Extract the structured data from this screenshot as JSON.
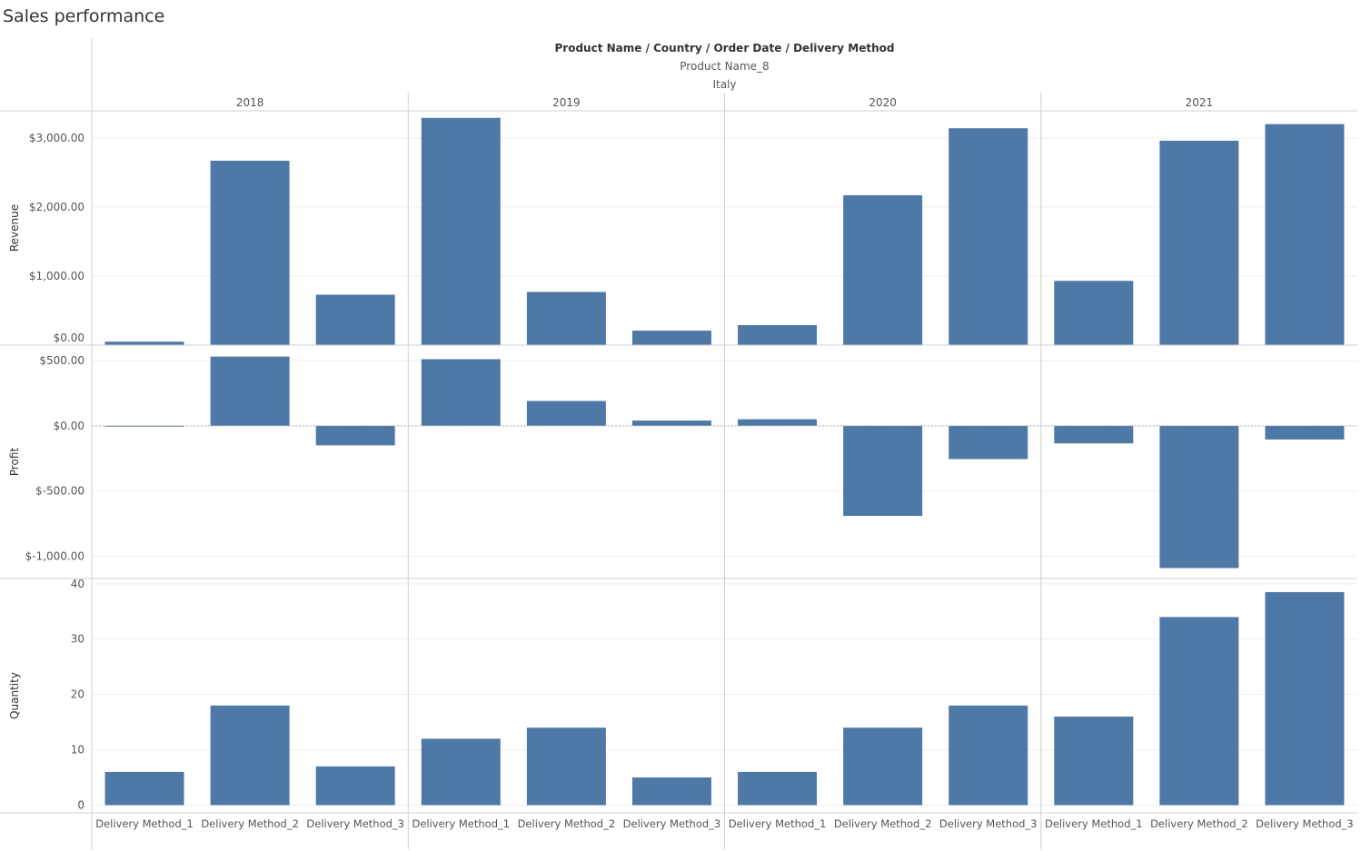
{
  "title": "Sales performance",
  "colors": {
    "bar": "#4e79a7",
    "grid": "#ededed",
    "divider": "#cfcfcf",
    "text": "#555555",
    "header": "#333333"
  },
  "chart_data": {
    "type": "bar",
    "header": {
      "levels": "Product Name / Country / Order Date / Delivery Method",
      "product": "Product Name_8",
      "country": "Italy"
    },
    "years": [
      "2018",
      "2019",
      "2020",
      "2021"
    ],
    "categories": [
      "Delivery Method_1",
      "Delivery Method_2",
      "Delivery Method_3"
    ],
    "grid": true,
    "panels": [
      {
        "measure": "Revenue",
        "ylim": [
          0,
          3340
        ],
        "ticks": [
          0,
          1000,
          2000,
          3000
        ],
        "tick_labels": [
          "$0.00",
          "$1,000.00",
          "$2,000.00",
          "$3,000.00"
        ],
        "values": [
          [
            50,
            2670,
            730
          ],
          [
            3290,
            770,
            210
          ],
          [
            290,
            2170,
            3140
          ],
          [
            930,
            2960,
            3200
          ]
        ]
      },
      {
        "measure": "Profit",
        "ylim": [
          -1170,
          590
        ],
        "ticks": [
          -1000,
          -500,
          0,
          500
        ],
        "tick_labels": [
          "$-1,000.00",
          "$-500.00",
          "$0.00",
          "$500.00"
        ],
        "zero_line": true,
        "values": [
          [
            -5,
            530,
            -150
          ],
          [
            510,
            190,
            40
          ],
          [
            50,
            -690,
            -255
          ],
          [
            -135,
            -1090,
            -105
          ]
        ]
      },
      {
        "measure": "Quantity",
        "ylim": [
          -1.4,
          40.3
        ],
        "ticks": [
          0,
          10,
          20,
          30,
          40
        ],
        "tick_labels": [
          "0",
          "10",
          "20",
          "30",
          "40"
        ],
        "values": [
          [
            6,
            18,
            7
          ],
          [
            12,
            14,
            5
          ],
          [
            6,
            14,
            18
          ],
          [
            16,
            34,
            38.5
          ]
        ]
      }
    ]
  }
}
